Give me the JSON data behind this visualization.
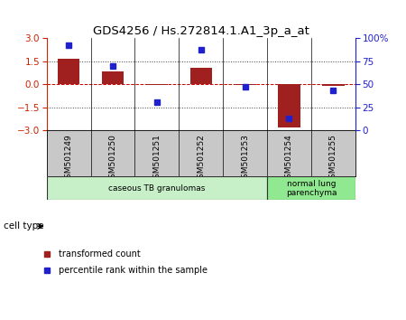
{
  "title": "GDS4256 / Hs.272814.1.A1_3p_a_at",
  "samples": [
    "GSM501249",
    "GSM501250",
    "GSM501251",
    "GSM501252",
    "GSM501253",
    "GSM501254",
    "GSM501255"
  ],
  "transformed_count": [
    1.65,
    0.85,
    -0.05,
    1.1,
    -0.05,
    -2.85,
    -0.08
  ],
  "percentile_rank": [
    93,
    70,
    30,
    88,
    47,
    13,
    43
  ],
  "ylim_left": [
    -3,
    3
  ],
  "ylim_right": [
    0,
    100
  ],
  "yticks_left": [
    -3,
    -1.5,
    0,
    1.5,
    3
  ],
  "yticks_right": [
    0,
    25,
    50,
    75,
    100
  ],
  "bar_color": "#a02020",
  "dot_color": "#2020cc",
  "dotted_line_color": "#404040",
  "zero_line_color": "#cc0000",
  "cell_types": [
    {
      "label": "caseous TB granulomas",
      "samples": [
        0,
        1,
        2,
        3,
        4
      ],
      "color": "#c8f0c8"
    },
    {
      "label": "normal lung\nparenchyma",
      "samples": [
        5,
        6
      ],
      "color": "#90e890"
    }
  ],
  "legend_bar_label": "transformed count",
  "legend_dot_label": "percentile rank within the sample",
  "cell_type_label": "cell type",
  "background_color": "#ffffff",
  "sample_label_bg": "#c8c8c8",
  "grid_line_color": "#000000"
}
